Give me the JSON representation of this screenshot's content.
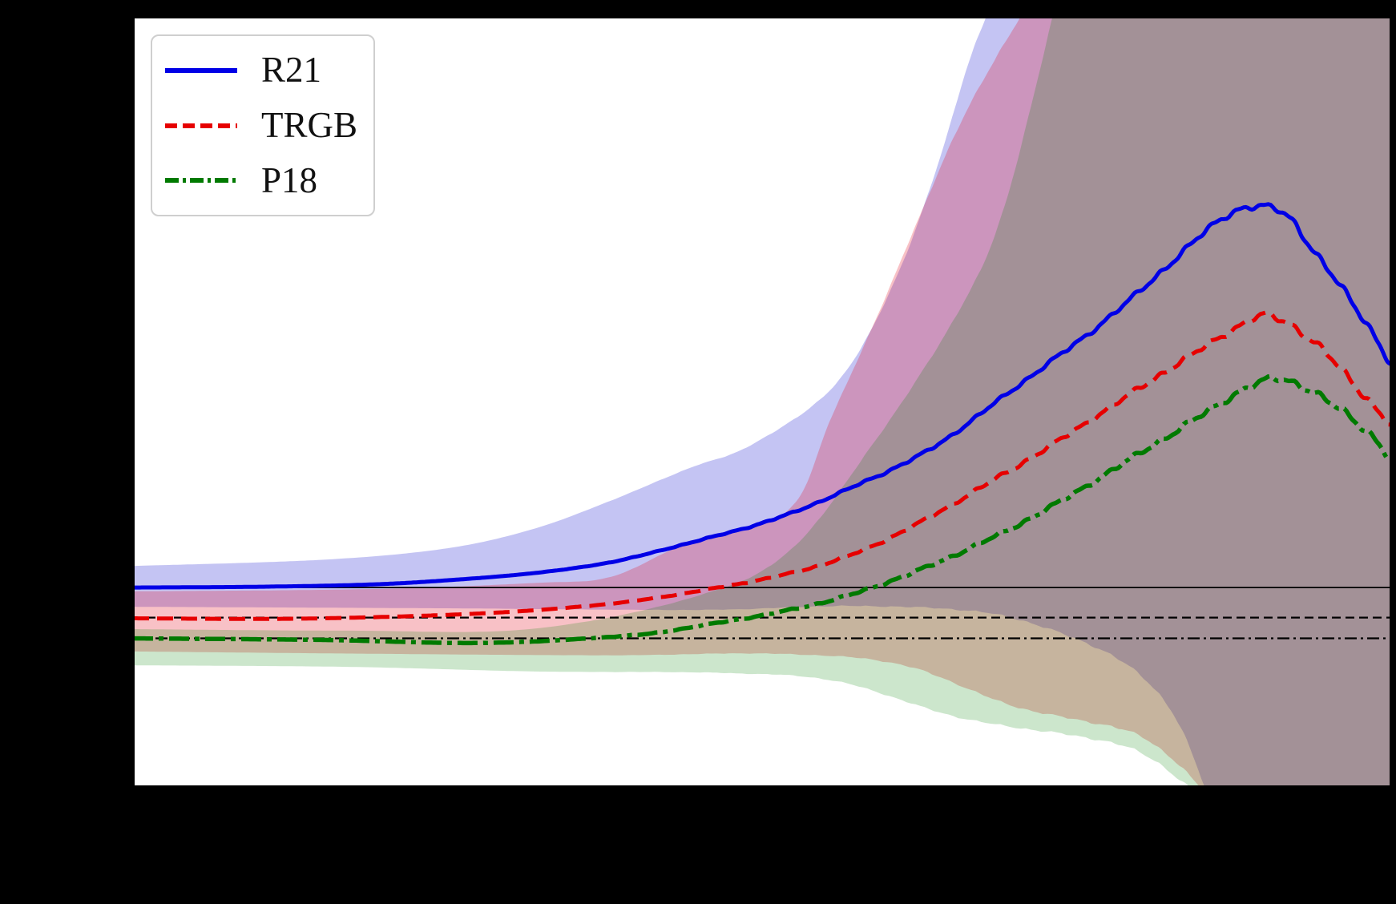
{
  "figure": {
    "background_color": "#000000",
    "plot_background_color": "#ffffff",
    "axis_tick_labels_visible": false,
    "axis_titles_visible": false
  },
  "legend": {
    "position": "upper-left",
    "items": [
      {
        "label": "R21",
        "color": "#0000e6",
        "style": "solid"
      },
      {
        "label": "TRGB",
        "color": "#e60000",
        "style": "dashed"
      },
      {
        "label": "P18",
        "color": "#007a00",
        "style": "dashdot"
      }
    ]
  },
  "chart_data": {
    "type": "line",
    "title": "",
    "xlabel": "",
    "ylabel": "",
    "grid": false,
    "legend_position": "upper left",
    "coordinates": "normalized within plot area: x 0-1 left to right, y 0-1 top to bottom",
    "reference_lines": [
      {
        "name": "R21-baseline",
        "style": "solid",
        "y": 0.741
      },
      {
        "name": "TRGB-baseline",
        "style": "dashed",
        "y": 0.78
      },
      {
        "name": "P18-baseline",
        "style": "dashdot",
        "y": 0.807
      }
    ],
    "series": [
      {
        "name": "R21",
        "style": "solid",
        "color": "#0000e6",
        "width": 5,
        "points": [
          [
            0,
            0.741
          ],
          [
            0.1,
            0.74
          ],
          [
            0.19,
            0.737
          ],
          [
            0.255,
            0.731
          ],
          [
            0.32,
            0.722
          ],
          [
            0.38,
            0.708
          ],
          [
            0.44,
            0.684
          ],
          [
            0.51,
            0.652
          ],
          [
            0.57,
            0.612
          ],
          [
            0.635,
            0.56
          ],
          [
            0.7,
            0.483
          ],
          [
            0.773,
            0.394
          ],
          [
            0.824,
            0.321
          ],
          [
            0.865,
            0.262
          ],
          [
            0.891,
            0.247
          ],
          [
            0.917,
            0.257
          ],
          [
            0.94,
            0.308
          ],
          [
            0.977,
            0.389
          ],
          [
            1.0,
            0.452
          ]
        ]
      },
      {
        "name": "TRGB",
        "style": "dashed",
        "color": "#e60000",
        "width": 5,
        "points": [
          [
            0,
            0.781
          ],
          [
            0.15,
            0.781
          ],
          [
            0.315,
            0.771
          ],
          [
            0.44,
            0.748
          ],
          [
            0.57,
            0.699
          ],
          [
            0.697,
            0.589
          ],
          [
            0.824,
            0.457
          ],
          [
            0.888,
            0.394
          ],
          [
            0.91,
            0.392
          ],
          [
            0.94,
            0.424
          ],
          [
            0.971,
            0.478
          ],
          [
            1.0,
            0.53
          ]
        ]
      },
      {
        "name": "P18",
        "style": "dashdot",
        "color": "#007a00",
        "width": 5.5,
        "points": [
          [
            0,
            0.807
          ],
          [
            0.149,
            0.809
          ],
          [
            0.276,
            0.813
          ],
          [
            0.38,
            0.805
          ],
          [
            0.442,
            0.793
          ],
          [
            0.569,
            0.751
          ],
          [
            0.697,
            0.665
          ],
          [
            0.824,
            0.543
          ],
          [
            0.888,
            0.48
          ],
          [
            0.923,
            0.475
          ],
          [
            0.977,
            0.532
          ],
          [
            1.0,
            0.576
          ]
        ]
      }
    ],
    "bands": [
      {
        "series": "R21",
        "fill": "#0000cd",
        "opacity": 0.23,
        "upper": [
          [
            0,
            0.713
          ],
          [
            0.15,
            0.705
          ],
          [
            0.25,
            0.69
          ],
          [
            0.32,
            0.664
          ],
          [
            0.38,
            0.628
          ],
          [
            0.442,
            0.586
          ],
          [
            0.485,
            0.561
          ],
          [
            0.54,
            0.505
          ],
          [
            0.575,
            0.44
          ],
          [
            0.612,
            0.318
          ],
          [
            0.64,
            0.19
          ],
          [
            0.662,
            0.07
          ],
          [
            0.678,
            0
          ]
        ],
        "lower": [
          [
            0,
            0.766
          ],
          [
            0.25,
            0.768
          ],
          [
            0.45,
            0.77
          ],
          [
            0.57,
            0.765
          ],
          [
            0.67,
            0.772
          ],
          [
            0.73,
            0.796
          ],
          [
            0.786,
            0.837
          ],
          [
            0.825,
            0.9
          ],
          [
            0.852,
            1
          ]
        ]
      },
      {
        "series": "TRGB",
        "fill": "#e30f23",
        "opacity": 0.26,
        "upper": [
          [
            0,
            0.746
          ],
          [
            0.19,
            0.743
          ],
          [
            0.32,
            0.735
          ],
          [
            0.38,
            0.727
          ],
          [
            0.442,
            0.682
          ],
          [
            0.52,
            0.642
          ],
          [
            0.555,
            0.52
          ],
          [
            0.59,
            0.394
          ],
          [
            0.625,
            0.26
          ],
          [
            0.66,
            0.13
          ],
          [
            0.705,
            0
          ]
        ],
        "lower": [
          [
            0,
            0.824
          ],
          [
            0.19,
            0.827
          ],
          [
            0.38,
            0.829
          ],
          [
            0.51,
            0.827
          ],
          [
            0.61,
            0.841
          ],
          [
            0.7,
            0.895
          ],
          [
            0.786,
            0.925
          ],
          [
            0.82,
            0.955
          ],
          [
            0.848,
            1
          ]
        ]
      },
      {
        "series": "P18",
        "fill": "#008000",
        "opacity": 0.2,
        "upper": [
          [
            0,
            0.795
          ],
          [
            0.17,
            0.797
          ],
          [
            0.315,
            0.795
          ],
          [
            0.442,
            0.755
          ],
          [
            0.52,
            0.696
          ],
          [
            0.59,
            0.55
          ],
          [
            0.652,
            0.394
          ],
          [
            0.69,
            0.26
          ],
          [
            0.731,
            0
          ]
        ],
        "lower": [
          [
            0,
            0.842
          ],
          [
            0.17,
            0.844
          ],
          [
            0.32,
            0.85
          ],
          [
            0.47,
            0.852
          ],
          [
            0.56,
            0.863
          ],
          [
            0.66,
            0.911
          ],
          [
            0.786,
            0.946
          ],
          [
            0.839,
            1
          ]
        ]
      }
    ]
  }
}
